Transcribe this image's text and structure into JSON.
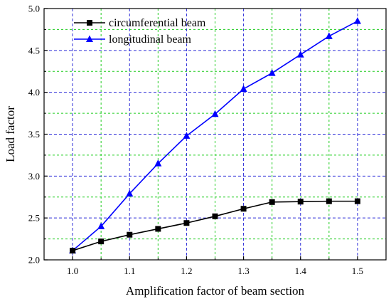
{
  "chart_data": {
    "type": "line",
    "title": "",
    "xlabel": "Amplification factor of beam section",
    "ylabel": "Load factor",
    "xlim": [
      0.95,
      1.55
    ],
    "ylim": [
      2.0,
      5.0
    ],
    "x_ticks": [
      "1.0",
      "1.1",
      "1.2",
      "1.3",
      "1.4",
      "1.5"
    ],
    "y_ticks": [
      "2.0",
      "2.5",
      "3.0",
      "3.5",
      "4.0",
      "4.5",
      "5.0"
    ],
    "grid": true,
    "legend_position": "top-left",
    "x": [
      1.0,
      1.05,
      1.1,
      1.15,
      1.2,
      1.25,
      1.3,
      1.35,
      1.4,
      1.45,
      1.5
    ],
    "series": [
      {
        "name": "circumferential beam",
        "marker": "square",
        "color": "#000000",
        "values": [
          2.11,
          2.22,
          2.3,
          2.37,
          2.44,
          2.52,
          2.61,
          2.69,
          2.695,
          2.7,
          2.7
        ]
      },
      {
        "name": "longitudinal beam",
        "marker": "triangle",
        "color": "#0000ff",
        "values": [
          2.11,
          2.4,
          2.79,
          3.15,
          3.48,
          3.74,
          4.04,
          4.23,
          4.45,
          4.67,
          4.85
        ]
      }
    ],
    "colors": {
      "grid_major": "#2b2bd8",
      "grid_minor": "#1fcc1f"
    }
  }
}
